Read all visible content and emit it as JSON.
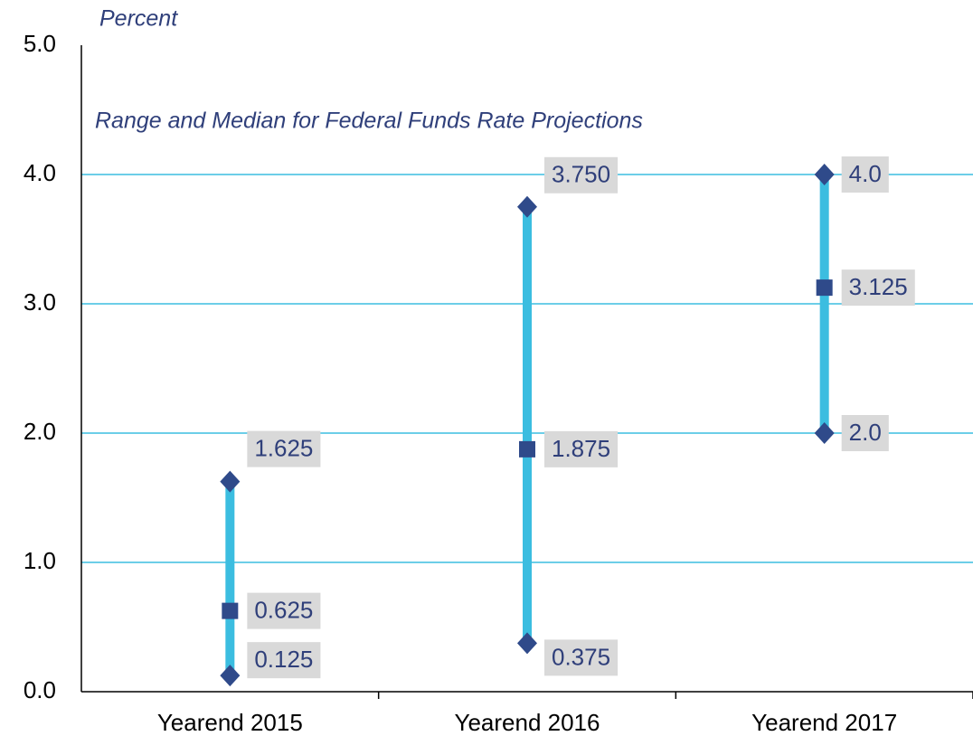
{
  "chart_data": {
    "type": "range",
    "title": "Range and Median for Federal Funds Rate Projections",
    "y_label": "Percent",
    "categories": [
      "Yearend 2015",
      "Yearend 2016",
      "Yearend 2017"
    ],
    "series": [
      {
        "name": "high",
        "color": "#2f4a8a",
        "values": [
          1.625,
          3.75,
          4
        ],
        "value_labels": [
          "1.625",
          "3.750",
          "4.0"
        ]
      },
      {
        "name": "median",
        "color": "#2f4a8a",
        "values": [
          0.625,
          1.875,
          3.125
        ],
        "value_labels": [
          "0.625",
          "1.875",
          "3.125"
        ]
      },
      {
        "name": "low",
        "color": "#2f4a8a",
        "values": [
          0.125,
          0.375,
          2
        ],
        "value_labels": [
          "0.125",
          "0.375",
          "2.0"
        ]
      }
    ],
    "range_color": "#3bbde0",
    "ylim": [
      0,
      5
    ],
    "yticks": [
      {
        "value": 0,
        "label": "0.0"
      },
      {
        "value": 1,
        "label": "1.0"
      },
      {
        "value": 2,
        "label": "2.0"
      },
      {
        "value": 3,
        "label": "3.0"
      },
      {
        "value": 4,
        "label": "4.0"
      },
      {
        "value": 5,
        "label": "5.0"
      }
    ],
    "grid": true
  }
}
